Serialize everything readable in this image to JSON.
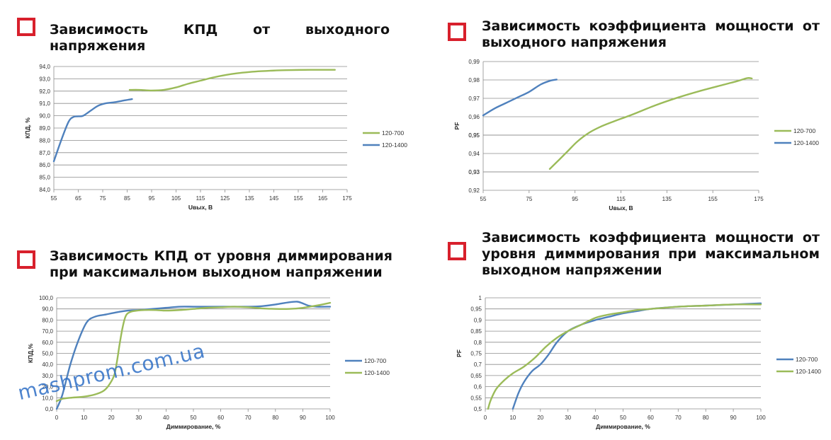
{
  "colors": {
    "accent_red": "#d8202c",
    "series_green": "#9bbb59",
    "series_blue": "#4f81bd",
    "grid": "#8c8c8c",
    "watermark": "#2f6fc6"
  },
  "watermark": "mashprom.com.ua",
  "panels": [
    {
      "title": "Зависимость КПД от выходного напряжения",
      "icon": "red-square-icon",
      "chart_data": {
        "type": "line",
        "xlabel": "Uвых, В",
        "ylabel": "КПД, %",
        "xlim": [
          55,
          175
        ],
        "ylim": [
          84,
          94
        ],
        "xticks": [
          55,
          65,
          75,
          85,
          95,
          105,
          115,
          125,
          135,
          145,
          155,
          165,
          175
        ],
        "yticks": [
          "84,0",
          "85,0",
          "86,0",
          "87,0",
          "88,0",
          "89,0",
          "90,0",
          "91,0",
          "92,0",
          "93,0",
          "94,0"
        ],
        "ytick_values": [
          84,
          85,
          86,
          87,
          88,
          89,
          90,
          91,
          92,
          93,
          94
        ],
        "grid": true,
        "legend_position": "right",
        "series": [
          {
            "name": "120-700",
            "color": "#9bbb59",
            "points": [
              [
                86,
                92.1
              ],
              [
                90,
                92.1
              ],
              [
                95,
                92.05
              ],
              [
                100,
                92.1
              ],
              [
                105,
                92.3
              ],
              [
                110,
                92.6
              ],
              [
                115,
                92.85
              ],
              [
                120,
                93.1
              ],
              [
                125,
                93.3
              ],
              [
                130,
                93.45
              ],
              [
                135,
                93.55
              ],
              [
                140,
                93.62
              ],
              [
                145,
                93.67
              ],
              [
                150,
                93.7
              ],
              [
                155,
                93.72
              ],
              [
                160,
                93.73
              ],
              [
                165,
                93.73
              ],
              [
                170,
                93.73
              ]
            ]
          },
          {
            "name": "120-1400",
            "color": "#4f81bd",
            "points": [
              [
                55,
                86.3
              ],
              [
                58,
                88.0
              ],
              [
                61,
                89.5
              ],
              [
                63,
                89.9
              ],
              [
                65,
                89.95
              ],
              [
                67,
                90.0
              ],
              [
                70,
                90.4
              ],
              [
                73,
                90.8
              ],
              [
                76,
                91.0
              ],
              [
                80,
                91.1
              ],
              [
                84,
                91.25
              ],
              [
                87,
                91.35
              ]
            ]
          }
        ]
      }
    },
    {
      "title": "Зависимость коэффициента мощности от выходного напряжения",
      "icon": "red-square-icon",
      "chart_data": {
        "type": "line",
        "xlabel": "Uвых, В",
        "ylabel": "PF",
        "xlim": [
          55,
          175
        ],
        "ylim": [
          0.92,
          0.99
        ],
        "xticks": [
          55,
          75,
          95,
          115,
          135,
          155,
          175
        ],
        "yticks": [
          "0,92",
          "0,93",
          "0,93",
          "0,94",
          "0,95",
          "0,95",
          "0,96",
          "0,97",
          "0,98",
          "0,99"
        ],
        "ytick_values": [
          0.92,
          0.93,
          0.93,
          0.94,
          0.95,
          0.95,
          0.96,
          0.97,
          0.98,
          0.99
        ],
        "grid": true,
        "legend_position": "right",
        "series": [
          {
            "name": "120-700",
            "color": "#9bbb59",
            "points": [
              [
                84,
                0.9316
              ],
              [
                88,
                0.9365
              ],
              [
                92,
                0.9415
              ],
              [
                96,
                0.9465
              ],
              [
                101,
                0.9512
              ],
              [
                106,
                0.9545
              ],
              [
                112,
                0.9575
              ],
              [
                120,
                0.9612
              ],
              [
                130,
                0.9662
              ],
              [
                140,
                0.9705
              ],
              [
                150,
                0.9742
              ],
              [
                160,
                0.9775
              ],
              [
                166,
                0.9795
              ],
              [
                170,
                0.981
              ],
              [
                172,
                0.9808
              ]
            ]
          },
          {
            "name": "120-1400",
            "color": "#4f81bd",
            "points": [
              [
                55,
                0.9607
              ],
              [
                60,
                0.9645
              ],
              [
                65,
                0.9675
              ],
              [
                70,
                0.9705
              ],
              [
                75,
                0.9735
              ],
              [
                80,
                0.9775
              ],
              [
                84,
                0.9795
              ],
              [
                87,
                0.9802
              ]
            ]
          }
        ]
      }
    },
    {
      "title": "Зависимость КПД от уровня диммирования при максимальном выходном напряжении",
      "icon": "red-square-icon",
      "chart_data": {
        "type": "line",
        "xlabel": "Диммирование, %",
        "ylabel": "КПД,%",
        "xlim": [
          0,
          100
        ],
        "ylim": [
          0,
          100
        ],
        "xticks": [
          0,
          10,
          20,
          30,
          40,
          50,
          60,
          70,
          80,
          90,
          100
        ],
        "yticks": [
          "0,0",
          "10,0",
          "20,0",
          "30,0",
          "40,0",
          "50,0",
          "60,0",
          "70,0",
          "80,0",
          "90,0",
          "100,0"
        ],
        "ytick_values": [
          0,
          10,
          20,
          30,
          40,
          50,
          60,
          70,
          80,
          90,
          100
        ],
        "grid": true,
        "legend_position": "right",
        "series": [
          {
            "name": "120-700",
            "color": "#4f81bd",
            "points": [
              [
                0,
                0
              ],
              [
                2,
                12
              ],
              [
                5,
                40
              ],
              [
                8,
                62
              ],
              [
                11,
                78
              ],
              [
                14,
                83
              ],
              [
                18,
                85
              ],
              [
                22,
                87
              ],
              [
                26,
                88.5
              ],
              [
                30,
                89
              ],
              [
                35,
                90
              ],
              [
                40,
                91
              ],
              [
                45,
                92
              ],
              [
                50,
                92
              ],
              [
                55,
                92
              ],
              [
                60,
                92
              ],
              [
                65,
                92
              ],
              [
                70,
                92
              ],
              [
                75,
                92.5
              ],
              [
                80,
                94
              ],
              [
                85,
                96
              ],
              [
                88,
                96.5
              ],
              [
                90,
                95
              ],
              [
                92,
                93
              ],
              [
                95,
                92
              ],
              [
                100,
                92
              ]
            ]
          },
          {
            "name": "120-1400",
            "color": "#9bbb59",
            "points": [
              [
                0,
                7
              ],
              [
                2,
                9
              ],
              [
                5,
                10
              ],
              [
                10,
                11
              ],
              [
                14,
                13
              ],
              [
                17,
                16
              ],
              [
                19,
                21
              ],
              [
                21,
                30
              ],
              [
                22,
                42
              ],
              [
                23,
                58
              ],
              [
                24,
                72
              ],
              [
                25,
                82
              ],
              [
                26,
                86
              ],
              [
                28,
                88
              ],
              [
                32,
                89
              ],
              [
                36,
                89
              ],
              [
                40,
                88.5
              ],
              [
                45,
                89
              ],
              [
                50,
                90
              ],
              [
                55,
                91
              ],
              [
                60,
                91.5
              ],
              [
                65,
                92
              ],
              [
                70,
                91.5
              ],
              [
                75,
                90.5
              ],
              [
                80,
                90
              ],
              [
                85,
                90
              ],
              [
                90,
                91
              ],
              [
                95,
                93
              ],
              [
                100,
                95.5
              ]
            ]
          }
        ]
      }
    },
    {
      "title": "Зависимость коэффициента мощности от уровня диммирования при максимальном выходном напряжении",
      "icon": "red-square-icon",
      "chart_data": {
        "type": "line",
        "xlabel": "Диммирование, %",
        "ylabel": "PF",
        "xlim": [
          0,
          100
        ],
        "ylim": [
          0.5,
          1
        ],
        "xticks": [
          0,
          10,
          20,
          30,
          40,
          50,
          60,
          70,
          80,
          90,
          100
        ],
        "yticks": [
          "0,5",
          "0,55",
          "0,6",
          "0,65",
          "0,7",
          "0,75",
          "0,8",
          "0,85",
          "0,9",
          "0,95",
          "1"
        ],
        "ytick_values": [
          0.5,
          0.55,
          0.6,
          0.65,
          0.7,
          0.75,
          0.8,
          0.85,
          0.9,
          0.95,
          1
        ],
        "grid": true,
        "legend_position": "right",
        "series": [
          {
            "name": "120-700",
            "color": "#4f81bd",
            "points": [
              [
                10,
                0.5
              ],
              [
                12,
                0.57
              ],
              [
                14,
                0.62
              ],
              [
                17,
                0.67
              ],
              [
                20,
                0.7
              ],
              [
                23,
                0.745
              ],
              [
                26,
                0.8
              ],
              [
                30,
                0.85
              ],
              [
                35,
                0.88
              ],
              [
                40,
                0.9
              ],
              [
                45,
                0.915
              ],
              [
                50,
                0.93
              ],
              [
                55,
                0.94
              ],
              [
                60,
                0.95
              ],
              [
                70,
                0.96
              ],
              [
                80,
                0.965
              ],
              [
                90,
                0.97
              ],
              [
                100,
                0.975
              ]
            ]
          },
          {
            "name": "120-1400",
            "color": "#9bbb59",
            "points": [
              [
                1,
                0.5
              ],
              [
                2,
                0.54
              ],
              [
                4,
                0.59
              ],
              [
                7,
                0.63
              ],
              [
                10,
                0.66
              ],
              [
                14,
                0.69
              ],
              [
                18,
                0.73
              ],
              [
                22,
                0.78
              ],
              [
                26,
                0.82
              ],
              [
                30,
                0.85
              ],
              [
                35,
                0.88
              ],
              [
                40,
                0.91
              ],
              [
                45,
                0.925
              ],
              [
                50,
                0.935
              ],
              [
                55,
                0.945
              ],
              [
                60,
                0.95
              ],
              [
                70,
                0.96
              ],
              [
                80,
                0.965
              ],
              [
                90,
                0.97
              ],
              [
                100,
                0.97
              ]
            ]
          }
        ]
      }
    }
  ]
}
